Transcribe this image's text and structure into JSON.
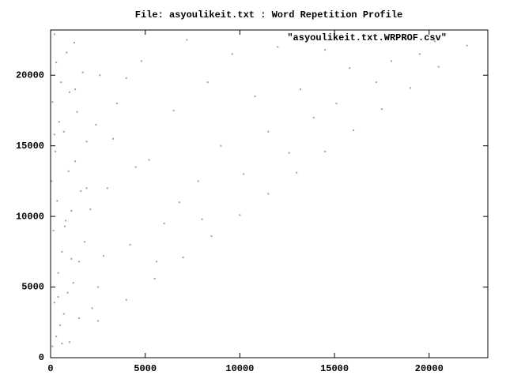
{
  "chart_data": {
    "type": "scatter",
    "title": "File: asyoulikeit.txt : Word Repetition Profile",
    "series": [
      {
        "name": "\"asyoulikeit.txt.WRPROF.csv\"",
        "color": "#a0a0a0",
        "x": [
          1000,
          2500,
          4000,
          5500,
          7000,
          8500,
          10000,
          11500,
          13000,
          14500,
          16000,
          17500,
          19000,
          20500,
          22000,
          100,
          300,
          500,
          700,
          200,
          900,
          1200,
          400,
          1500,
          600,
          1800,
          150,
          800,
          1100,
          350,
          1600,
          50,
          950,
          1300,
          250,
          1900,
          700,
          450,
          1400,
          100,
          1000,
          550,
          1700,
          300,
          850,
          1250,
          200,
          600,
          1500,
          400,
          1100,
          750,
          1900,
          200,
          1300,
          2500,
          3000,
          3500,
          4200,
          4800,
          5200,
          6000,
          6500,
          7200,
          7800,
          8300,
          9000,
          9600,
          10200,
          10800,
          11500,
          12000,
          12600,
          13200,
          13900,
          14500,
          15100,
          15800,
          16500,
          17200,
          18000,
          18800,
          19500,
          20300,
          2200,
          2800,
          3300,
          4000,
          5600,
          6800,
          2100,
          2400,
          2600,
          4500,
          8000
        ],
        "y": [
          1100,
          2600,
          4100,
          5600,
          7100,
          8600,
          10100,
          11600,
          13100,
          14600,
          16100,
          17600,
          19100,
          20600,
          22100,
          800,
          1500,
          2300,
          3100,
          3900,
          4600,
          5300,
          6000,
          6800,
          7500,
          8200,
          9000,
          9700,
          10400,
          11100,
          11800,
          12500,
          13200,
          13900,
          14600,
          15300,
          16000,
          16700,
          17400,
          18100,
          18800,
          19500,
          20200,
          20900,
          21600,
          22300,
          22900,
          1000,
          2800,
          4300,
          7000,
          9300,
          12000,
          15800,
          19000,
          5000,
          12000,
          18000,
          8000,
          21000,
          14000,
          9500,
          17500,
          22500,
          12500,
          19500,
          15000,
          21500,
          13000,
          18500,
          16000,
          22000,
          14500,
          19000,
          17000,
          21800,
          18000,
          20500,
          22800,
          19500,
          21000,
          22600,
          21500,
          22400,
          3500,
          7200,
          15500,
          19800,
          6800,
          11000,
          10500,
          16500,
          20000,
          13500,
          9800
        ]
      }
    ],
    "xlim": [
      0,
      23100
    ],
    "ylim": [
      0,
      23200
    ],
    "xticks": [
      0,
      5000,
      10000,
      15000,
      20000
    ],
    "yticks": [
      0,
      5000,
      10000,
      15000,
      20000
    ],
    "legend": "top-right"
  }
}
